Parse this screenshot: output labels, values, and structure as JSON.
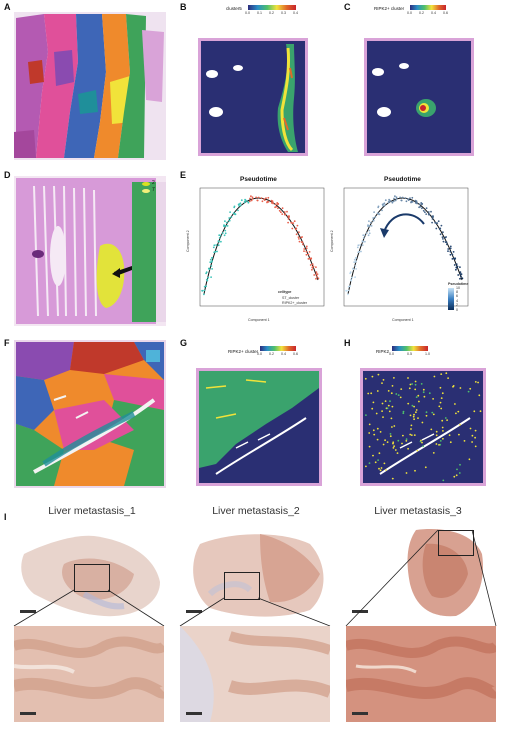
{
  "panels": {
    "A": {
      "label": "A"
    },
    "B": {
      "label": "B",
      "legend_title": "cluster5",
      "ticks": [
        "0.0",
        "0.1",
        "0.2",
        "0.3",
        "0.4"
      ]
    },
    "C": {
      "label": "C",
      "legend_title": "RIPK2+ cluster",
      "ticks": [
        "0.0",
        "0.2",
        "0.4",
        "0.6"
      ]
    },
    "D": {
      "label": "D",
      "legend_items": [
        "2",
        "7"
      ],
      "legend_colors": [
        "#d8e022",
        "#f2ef7a"
      ]
    },
    "E": {
      "label": "E",
      "left": {
        "title": "Pseudotime",
        "xlabel": "Component 1",
        "ylabel": "Component 2",
        "legend_title": "celltype",
        "legend_items": [
          "ST_cluster",
          "RIPK2+_cluster"
        ]
      },
      "right": {
        "title": "Pseudotime",
        "xlabel": "Component 1",
        "ylabel": "Component 2",
        "legend_title": "Pseudotime",
        "legend_ticks": [
          "10",
          "8",
          "6",
          "4",
          "2",
          "0"
        ]
      }
    },
    "F": {
      "label": "F"
    },
    "G": {
      "label": "G",
      "legend_title": "RIPK2+ cluster",
      "ticks": [
        "0.0",
        "0.2",
        "0.4",
        "0.6"
      ]
    },
    "H": {
      "label": "H",
      "legend_title": "RIPK2",
      "ticks": [
        "0.0",
        "0.5",
        "1.0"
      ]
    },
    "I": {
      "label": "I",
      "titles": [
        "Liver metastasis_1",
        "Liver metastasis_2",
        "Liver metastasis_3"
      ]
    }
  },
  "colors": {
    "viridis_bg": "#2a2f73",
    "hne_pink": "#d79ad8",
    "ihc_brown": "#b9705c"
  }
}
